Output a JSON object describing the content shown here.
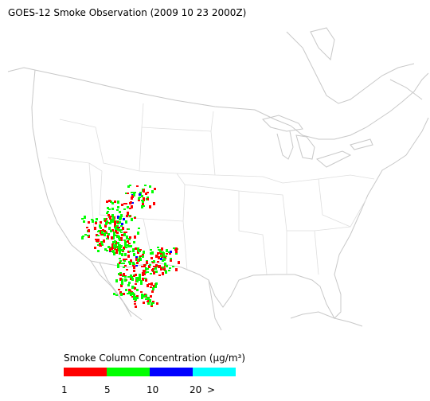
{
  "header": {
    "title": "GOES-12 Smoke Observation (2009 10 23  2000Z)"
  },
  "legend": {
    "title": "Smoke Column Concentration (μg/m³)",
    "labels": [
      "1",
      "5",
      "10",
      "20",
      ">"
    ],
    "colors": [
      "#ff0000",
      "#00ff00",
      "#0000ff",
      "#00ffff"
    ]
  }
}
